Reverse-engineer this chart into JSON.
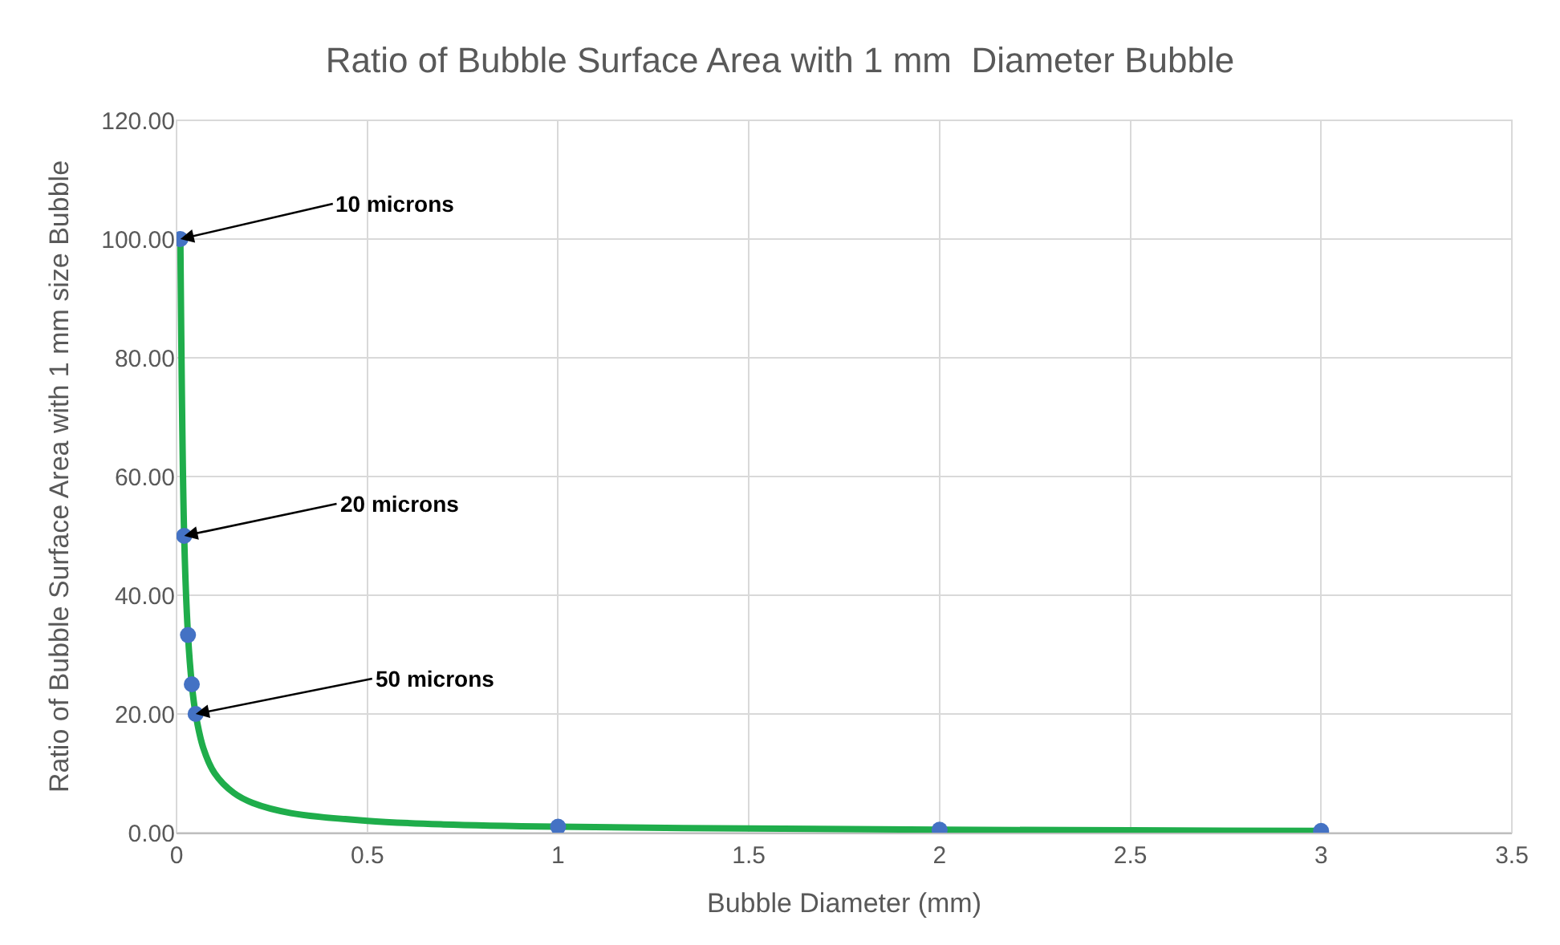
{
  "chart_data": {
    "type": "scatter",
    "title": "Ratio of Bubble Surface Area with 1 mm  Diameter Bubble",
    "xlabel": "Bubble Diameter (mm)",
    "ylabel": "Ratio of Bubble Surface Area with 1 mm size Bubble",
    "series": [
      {
        "type": "line",
        "color": "#1fad4b",
        "marker": "none",
        "x": [
          0.01,
          0.02,
          0.03,
          0.04,
          0.05,
          0.07,
          0.1,
          0.15,
          0.2,
          0.3,
          0.5,
          0.7,
          1,
          1.5,
          2,
          2.5,
          3
        ],
        "values": [
          100,
          50,
          33.3,
          25,
          20,
          14.3,
          10,
          6.7,
          5,
          3.3,
          2,
          1.4,
          1,
          0.7,
          0.5,
          0.4,
          0.3
        ]
      },
      {
        "color": "#4472c4",
        "marker": "circle",
        "x": [
          0.01,
          0.02,
          0.03,
          0.04,
          0.05,
          1,
          2,
          3
        ],
        "values": [
          100,
          50,
          33.3,
          25,
          20,
          1,
          0.5,
          0.3
        ]
      }
    ],
    "annotations": [
      {
        "text": "10 microns",
        "x": 0.01,
        "y": 100
      },
      {
        "text": "20 microns",
        "x": 0.02,
        "y": 50
      },
      {
        "text": "50 microns",
        "x": 0.05,
        "y": 20
      }
    ],
    "xlim": [
      0,
      3.5
    ],
    "xticks": [
      0,
      0.5,
      1,
      1.5,
      2,
      2.5,
      3,
      3.5
    ],
    "ylim": [
      0,
      120
    ],
    "yticks": [
      {
        "value": 0,
        "label": "0.00"
      },
      {
        "value": 20,
        "label": "20.00"
      },
      {
        "value": 40,
        "label": "40.00"
      },
      {
        "value": 60,
        "label": "60.00"
      },
      {
        "value": 80,
        "label": "80.00"
      },
      {
        "value": 100,
        "label": "100.00"
      },
      {
        "value": 120,
        "label": "120.00"
      }
    ],
    "grid": true
  }
}
